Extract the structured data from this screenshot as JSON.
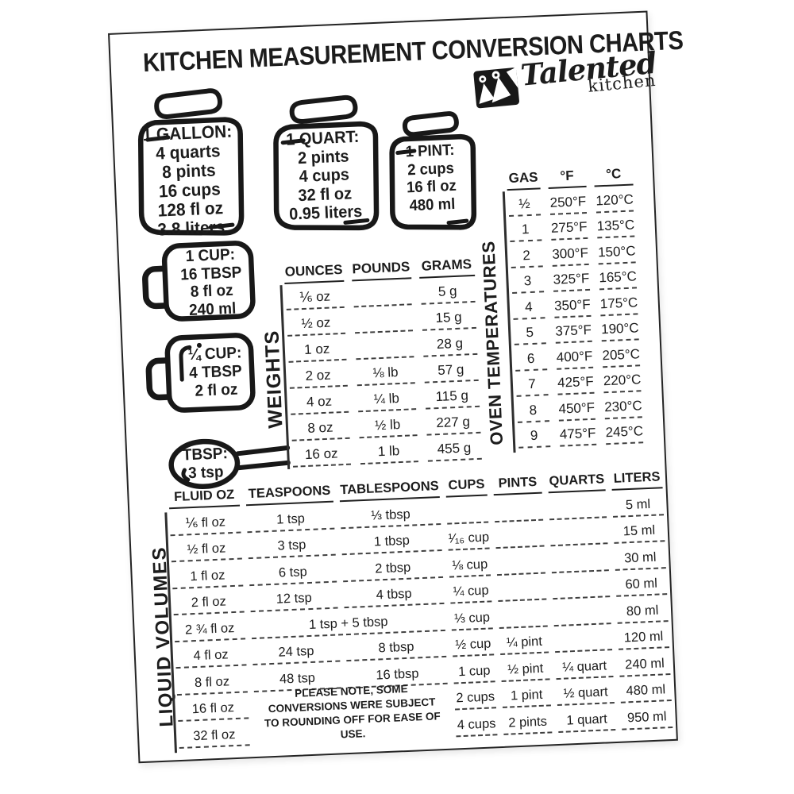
{
  "title": "KITCHEN MEASUREMENT CONVERSION CHARTS",
  "logo": {
    "name": "Talented",
    "sub": "kitchen"
  },
  "jars": [
    {
      "lines": [
        "1 GALLON:",
        "4 quarts",
        "8 pints",
        "16 cups",
        "128 fl oz",
        "3.8 liters"
      ]
    },
    {
      "lines": [
        "1 QUART:",
        "2 pints",
        "4 cups",
        "32 fl oz",
        "0.95 liters"
      ]
    },
    {
      "lines": [
        "1 PINT:",
        "2 cups",
        "16 fl oz",
        "480 ml"
      ]
    }
  ],
  "cups": [
    {
      "lines": [
        "1 CUP:",
        "16 TBSP",
        "8 fl oz",
        "240 ml"
      ]
    },
    {
      "lines": [
        "¼ CUP:",
        "4 TBSP",
        "2 fl oz"
      ]
    },
    {
      "lines": [
        "TBSP:",
        "3 tsp"
      ]
    }
  ],
  "weights": {
    "side_label": "WEIGHTS",
    "headers": [
      "OUNCES",
      "POUNDS",
      "GRAMS"
    ],
    "rows": [
      [
        "⅙ oz",
        "",
        "5 g"
      ],
      [
        "½ oz",
        "",
        "15 g"
      ],
      [
        "1 oz",
        "",
        "28 g"
      ],
      [
        "2 oz",
        "⅛ lb",
        "57 g"
      ],
      [
        "4 oz",
        "¼ lb",
        "115 g"
      ],
      [
        "8 oz",
        "½ lb",
        "227 g"
      ],
      [
        "16 oz",
        "1 lb",
        "455 g"
      ]
    ]
  },
  "oven": {
    "side_label": "OVEN TEMPERATURES",
    "headers": [
      "GAS",
      "°F",
      "°C"
    ],
    "rows": [
      [
        "½",
        "250°F",
        "120°C"
      ],
      [
        "1",
        "275°F",
        "135°C"
      ],
      [
        "2",
        "300°F",
        "150°C"
      ],
      [
        "3",
        "325°F",
        "165°C"
      ],
      [
        "4",
        "350°F",
        "175°C"
      ],
      [
        "5",
        "375°F",
        "190°C"
      ],
      [
        "6",
        "400°F",
        "205°C"
      ],
      [
        "7",
        "425°F",
        "220°C"
      ],
      [
        "8",
        "450°F",
        "230°C"
      ],
      [
        "9",
        "475°F",
        "245°C"
      ]
    ]
  },
  "liquid": {
    "side_label": "LIQUID VOLUMES",
    "headers": [
      "FLUID OZ",
      "TEASPOONS",
      "TABLESPOONS",
      "CUPS",
      "PINTS",
      "QUARTS",
      "LITERS"
    ],
    "rows": [
      [
        "⅙ fl oz",
        "1 tsp",
        "⅓ tbsp",
        "",
        "",
        "",
        "5 ml"
      ],
      [
        "½ fl oz",
        "3 tsp",
        "1 tbsp",
        "¹⁄₁₆ cup",
        "",
        "",
        "15 ml"
      ],
      [
        "1 fl oz",
        "6 tsp",
        "2 tbsp",
        "⅛ cup",
        "",
        "",
        "30 ml"
      ],
      [
        "2 fl oz",
        "12 tsp",
        "4 tbsp",
        "¼ cup",
        "",
        "",
        "60 ml"
      ],
      [
        "2 ¾ fl oz",
        {
          "text": "1 tsp + 5 tbsp",
          "colspan": 2
        },
        null,
        "⅓ cup",
        "",
        "",
        "80 ml"
      ],
      [
        "4 fl oz",
        "24 tsp",
        "8 tbsp",
        "½ cup",
        "¼ pint",
        "",
        "120 ml"
      ],
      [
        "8 fl oz",
        "48 tsp",
        "16 tbsp",
        "1 cup",
        "½ pint",
        "¼ quart",
        "240 ml"
      ],
      [
        "16 fl oz",
        {
          "text": "PLEASE NOTE, SOME CONVERSIONS WERE SUBJECT TO ROUNDING OFF FOR EASE OF USE.",
          "colspan": 2,
          "rowspan": 2,
          "cls": "note"
        },
        null,
        "2 cups",
        "1 pint",
        "½ quart",
        "480 ml"
      ],
      [
        "32 fl oz",
        null,
        null,
        "4 cups",
        "2 pints",
        "1 quart",
        "950 ml"
      ]
    ]
  }
}
